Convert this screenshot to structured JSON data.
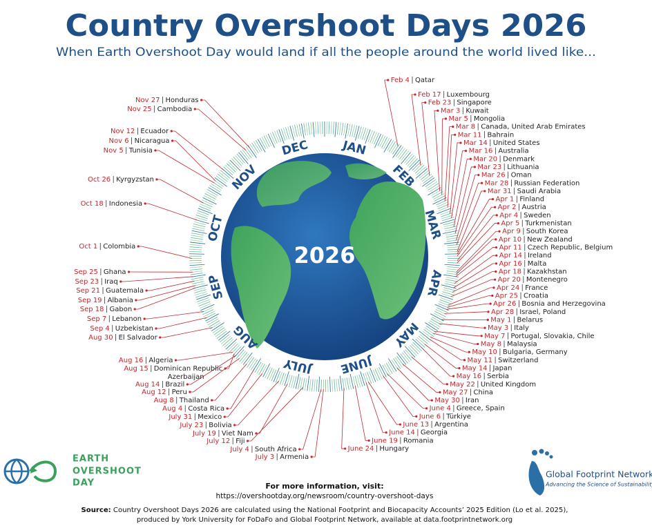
{
  "header": {
    "title": "Country Overshoot Days 2026",
    "subtitle": "When Earth Overshoot Day would land if all the people around the world lived like..."
  },
  "globe": {
    "year": "2026",
    "months": [
      "JAN",
      "FEB",
      "MAR",
      "APR",
      "MAY",
      "JUNE",
      "JULY",
      "AUG",
      "SEP",
      "OCT",
      "NOV",
      "DEC"
    ]
  },
  "countries": [
    {
      "date": "Feb 4",
      "country": "Qatar"
    },
    {
      "date": "Feb 17",
      "country": "Luxembourg"
    },
    {
      "date": "Feb 23",
      "country": "Singapore"
    },
    {
      "date": "Mar 3",
      "country": "Kuwait"
    },
    {
      "date": "Mar 5",
      "country": "Mongolia"
    },
    {
      "date": "Mar 8",
      "country": "Canada, United Arab Emirates"
    },
    {
      "date": "Mar 11",
      "country": "Bahrain"
    },
    {
      "date": "Mar 14",
      "country": "United States"
    },
    {
      "date": "Mar 16",
      "country": "Australia"
    },
    {
      "date": "Mar 20",
      "country": "Denmark"
    },
    {
      "date": "Mar 23",
      "country": "Lithuania"
    },
    {
      "date": "Mar 26",
      "country": "Oman"
    },
    {
      "date": "Mar 28",
      "country": "Russian Federation"
    },
    {
      "date": "Mar 31",
      "country": "Saudi Arabia"
    },
    {
      "date": "Apr 1",
      "country": "Finland"
    },
    {
      "date": "Apr 2",
      "country": "Austria"
    },
    {
      "date": "Apr 4",
      "country": "Sweden"
    },
    {
      "date": "Apr 5",
      "country": "Turkmenistan"
    },
    {
      "date": "Apr 9",
      "country": "South Korea"
    },
    {
      "date": "Apr 10",
      "country": "New Zealand"
    },
    {
      "date": "Apr 11",
      "country": "Czech Republic, Belgium"
    },
    {
      "date": "Apr 14",
      "country": "Ireland"
    },
    {
      "date": "Apr 16",
      "country": "Malta"
    },
    {
      "date": "Apr 18",
      "country": "Kazakhstan"
    },
    {
      "date": "Apr 20",
      "country": "Montenegro"
    },
    {
      "date": "Apr 24",
      "country": "France"
    },
    {
      "date": "Apr 25",
      "country": "Croatia"
    },
    {
      "date": "Apr 26",
      "country": "Bosnia and Herzegovina"
    },
    {
      "date": "Apr 28",
      "country": "Israel, Poland"
    },
    {
      "date": "May 1",
      "country": "Belarus"
    },
    {
      "date": "May 3",
      "country": "Italy"
    },
    {
      "date": "May 7",
      "country": "Portugal, Slovakia, Chile"
    },
    {
      "date": "May 8",
      "country": "Malaysia"
    },
    {
      "date": "May 10",
      "country": "Bulgaria, Germany"
    },
    {
      "date": "May 11",
      "country": "Switzerland"
    },
    {
      "date": "May 14",
      "country": "Japan"
    },
    {
      "date": "May 16",
      "country": "Serbia"
    },
    {
      "date": "May 22",
      "country": "United Kingdom"
    },
    {
      "date": "May 27",
      "country": "China"
    },
    {
      "date": "May 30",
      "country": "Iran"
    },
    {
      "date": "June 4",
      "country": "Greece, Spain"
    },
    {
      "date": "June 6",
      "country": "Türkiye"
    },
    {
      "date": "June 13",
      "country": "Argentina"
    },
    {
      "date": "June 14",
      "country": "Georgia"
    },
    {
      "date": "June 19",
      "country": "Romania"
    },
    {
      "date": "June 24",
      "country": "Hungary"
    },
    {
      "date": "July 3",
      "country": "Armenia"
    },
    {
      "date": "July 4",
      "country": "South Africa"
    },
    {
      "date": "July 12",
      "country": "Fiji"
    },
    {
      "date": "July 19",
      "country": "Viet Nam"
    },
    {
      "date": "July 23",
      "country": "Bolivia"
    },
    {
      "date": "July 31",
      "country": "Mexico"
    },
    {
      "date": "Aug 4",
      "country": "Costa Rica"
    },
    {
      "date": "Aug 8",
      "country": "Thailand"
    },
    {
      "date": "Aug 12",
      "country": "Peru"
    },
    {
      "date": "Aug 14",
      "country": "Brazil"
    },
    {
      "date": "Aug 15",
      "country": [
        "Dominican Republic",
        "Azerbaijan"
      ]
    },
    {
      "date": "Aug 16",
      "country": "Algeria"
    },
    {
      "date": "Aug 30",
      "country": "El Salvador"
    },
    {
      "date": "Sep 4",
      "country": "Uzbekistan"
    },
    {
      "date": "Sep 7",
      "country": "Lebanon"
    },
    {
      "date": "Sep 18",
      "country": "Gabon"
    },
    {
      "date": "Sep 19",
      "country": "Albania"
    },
    {
      "date": "Sep 21",
      "country": "Guatemala"
    },
    {
      "date": "Sep 23",
      "country": "Iraq"
    },
    {
      "date": "Sep 25",
      "country": "Ghana"
    },
    {
      "date": "Oct 1",
      "country": "Colombia"
    },
    {
      "date": "Oct 18",
      "country": "Indonesia"
    },
    {
      "date": "Oct 26",
      "country": "Kyrgyzstan"
    },
    {
      "date": "Nov 5",
      "country": "Tunisia"
    },
    {
      "date": "Nov 6",
      "country": "Nicaragua"
    },
    {
      "date": "Nov 12",
      "country": "Ecuador"
    },
    {
      "date": "Nov 25",
      "country": "Cambodia"
    },
    {
      "date": "Nov 27",
      "country": "Honduras"
    }
  ],
  "footer": {
    "more_info": "For more information, visit:",
    "url": "https://overshootday.org/newsroom/country-overshoot-days",
    "source_label": "Source:",
    "source_line1": "Country Overshoot Days 2026 are calculated using the National Footprint and Biocapacity Accounts’ 2025 Edition (Lo et al. 2025),",
    "source_line2": "produced by York University for FoDaFo and Global Footprint Network, available at data.footprintnetwork.org"
  },
  "logos": {
    "eod": [
      "EARTH",
      "OVERSHOOT",
      "DAY"
    ],
    "gfn_name": "Global Footprint Network",
    "gfn_tagline": "Advancing the Science of Sustainability"
  }
}
